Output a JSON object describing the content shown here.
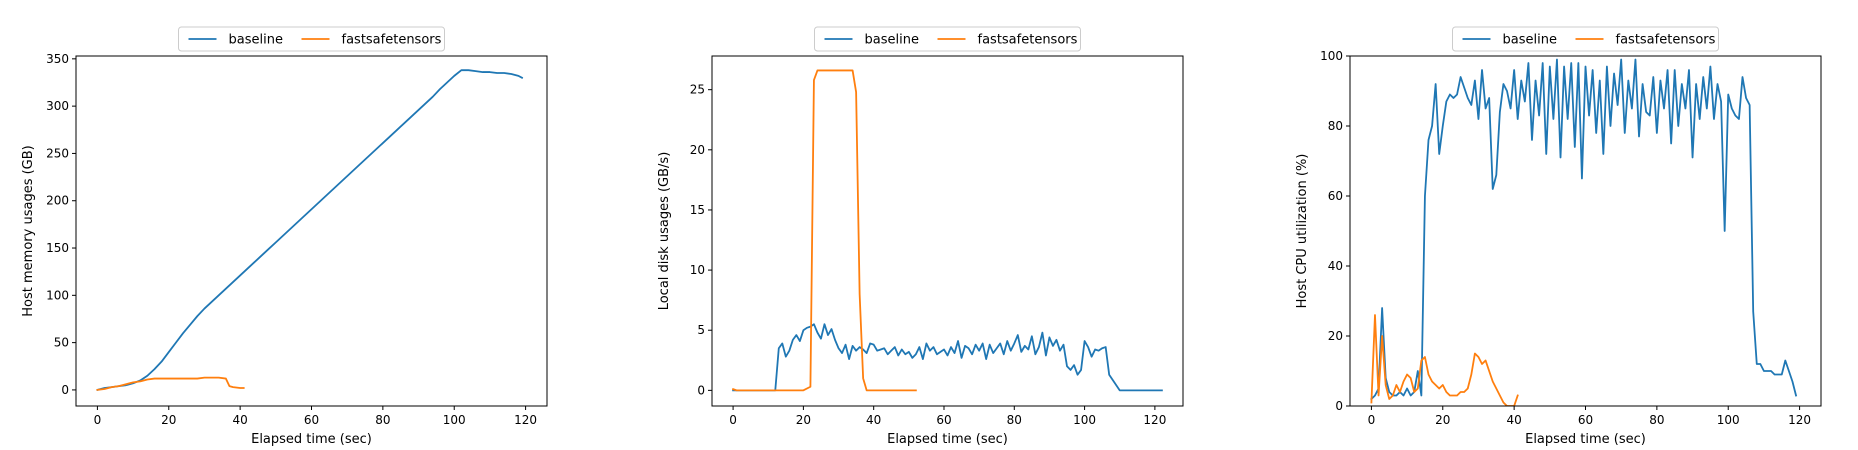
{
  "colors": {
    "baseline": "#1f77b4",
    "fastsafetensors": "#ff7f0e"
  },
  "chart_data": [
    {
      "type": "line",
      "title": "",
      "xlabel": "Elapsed time (sec)",
      "ylabel": "Host memory usages (GB)",
      "xlim": [
        -6,
        126
      ],
      "ylim": [
        -17,
        353
      ],
      "xticks": [
        0,
        20,
        40,
        60,
        80,
        100,
        120
      ],
      "yticks": [
        0,
        50,
        100,
        150,
        200,
        250,
        300,
        350
      ],
      "grid": false,
      "legend": "top-center",
      "series": [
        {
          "name": "baseline",
          "x": [
            0,
            2,
            4,
            6,
            8,
            10,
            12,
            14,
            16,
            18,
            20,
            22,
            24,
            26,
            28,
            30,
            32,
            34,
            36,
            38,
            40,
            42,
            44,
            46,
            48,
            50,
            52,
            54,
            56,
            58,
            60,
            62,
            64,
            66,
            68,
            70,
            72,
            74,
            76,
            78,
            80,
            82,
            84,
            86,
            88,
            90,
            92,
            94,
            96,
            98,
            100,
            102,
            104,
            106,
            108,
            110,
            112,
            114,
            116,
            118,
            119
          ],
          "y": [
            0,
            2,
            3,
            4,
            5,
            7,
            10,
            15,
            22,
            30,
            40,
            50,
            60,
            69,
            78,
            86,
            93,
            100,
            107,
            114,
            121,
            128,
            135,
            142,
            149,
            156,
            163,
            170,
            177,
            184,
            191,
            198,
            205,
            212,
            219,
            226,
            233,
            240,
            247,
            254,
            261,
            268,
            275,
            282,
            289,
            296,
            303,
            310,
            318,
            325,
            332,
            338,
            338,
            337,
            336,
            336,
            335,
            335,
            334,
            332,
            330
          ]
        },
        {
          "name": "fastsafetensors",
          "x": [
            0,
            2,
            4,
            6,
            8,
            10,
            12,
            14,
            16,
            18,
            20,
            22,
            24,
            26,
            28,
            30,
            32,
            34,
            36,
            37,
            38,
            40,
            41
          ],
          "y": [
            0,
            1,
            3,
            4,
            6,
            8,
            9,
            11,
            12,
            12,
            12,
            12,
            12,
            12,
            12,
            13,
            13,
            13,
            12,
            4,
            3,
            2,
            2
          ]
        }
      ]
    },
    {
      "type": "line",
      "title": "",
      "xlabel": "Elapsed time (sec)",
      "ylabel": "Local disk usages (GB/s)",
      "xlim": [
        -6,
        128
      ],
      "ylim": [
        -1.3,
        27.8
      ],
      "xticks": [
        0,
        20,
        40,
        60,
        80,
        100,
        120
      ],
      "yticks": [
        0,
        5,
        10,
        15,
        20,
        25
      ],
      "grid": false,
      "legend": "top-center",
      "series": [
        {
          "name": "baseline",
          "x": [
            0,
            2,
            4,
            6,
            8,
            10,
            12,
            13,
            14,
            15,
            16,
            17,
            18,
            19,
            20,
            21,
            22,
            23,
            24,
            25,
            26,
            27,
            28,
            29,
            30,
            31,
            32,
            33,
            34,
            35,
            36,
            37,
            38,
            39,
            40,
            41,
            42,
            43,
            44,
            45,
            46,
            47,
            48,
            49,
            50,
            51,
            52,
            53,
            54,
            55,
            56,
            57,
            58,
            59,
            60,
            61,
            62,
            63,
            64,
            65,
            66,
            67,
            68,
            69,
            70,
            71,
            72,
            73,
            74,
            75,
            76,
            77,
            78,
            79,
            80,
            81,
            82,
            83,
            84,
            85,
            86,
            87,
            88,
            89,
            90,
            91,
            92,
            93,
            94,
            95,
            96,
            97,
            98,
            99,
            100,
            101,
            102,
            103,
            104,
            105,
            106,
            107,
            110,
            115,
            122
          ],
          "y": [
            0,
            0,
            0,
            0,
            0,
            0,
            0,
            3.5,
            3.9,
            2.8,
            3.3,
            4.2,
            4.6,
            4.1,
            5.0,
            5.2,
            5.3,
            5.5,
            4.8,
            4.3,
            5.5,
            4.6,
            5.1,
            4.2,
            3.5,
            3.1,
            3.8,
            2.6,
            3.7,
            3.3,
            3.6,
            3.4,
            3.1,
            3.9,
            3.8,
            3.3,
            3.4,
            3.5,
            3.0,
            3.3,
            3.6,
            2.9,
            3.4,
            3.0,
            3.2,
            2.7,
            3.0,
            3.6,
            2.6,
            3.9,
            3.3,
            3.6,
            3.0,
            3.2,
            3.4,
            2.9,
            3.6,
            3.1,
            4.1,
            2.7,
            3.7,
            3.5,
            3.0,
            3.8,
            3.3,
            3.9,
            2.6,
            3.8,
            3.1,
            3.5,
            3.9,
            3.0,
            4.1,
            3.3,
            3.9,
            4.6,
            3.2,
            3.7,
            3.4,
            4.5,
            3.0,
            3.6,
            4.8,
            2.9,
            4.4,
            3.7,
            4.2,
            3.3,
            3.8,
            2.0,
            1.7,
            2.1,
            1.3,
            1.7,
            4.1,
            3.6,
            2.8,
            3.4,
            3.3,
            3.5,
            3.6,
            1.3,
            0,
            0,
            0
          ]
        },
        {
          "name": "fastsafetensors",
          "x": [
            0,
            1,
            5,
            10,
            15,
            20,
            22,
            23,
            24,
            26,
            28,
            30,
            32,
            34,
            35,
            36,
            37,
            38,
            40,
            45,
            52
          ],
          "y": [
            0.1,
            0,
            0,
            0,
            0,
            0,
            0.3,
            25.8,
            26.6,
            26.6,
            26.6,
            26.6,
            26.6,
            26.6,
            24.8,
            8.0,
            1.0,
            0,
            0,
            0,
            0
          ]
        }
      ]
    },
    {
      "type": "line",
      "title": "",
      "xlabel": "Elapsed time (sec)",
      "ylabel": "Host CPU utilization (%)",
      "xlim": [
        -6,
        126
      ],
      "ylim": [
        0,
        100
      ],
      "xticks": [
        0,
        20,
        40,
        60,
        80,
        100,
        120
      ],
      "yticks": [
        0,
        20,
        40,
        60,
        80,
        100
      ],
      "grid": false,
      "legend": "top-center",
      "series": [
        {
          "name": "baseline",
          "x": [
            0,
            1,
            2,
            3,
            4,
            5,
            6,
            7,
            8,
            9,
            10,
            11,
            12,
            13,
            14,
            15,
            16,
            17,
            18,
            19,
            20,
            21,
            22,
            23,
            24,
            25,
            26,
            27,
            28,
            29,
            30,
            31,
            32,
            33,
            34,
            35,
            36,
            37,
            38,
            39,
            40,
            41,
            42,
            43,
            44,
            45,
            46,
            47,
            48,
            49,
            50,
            51,
            52,
            53,
            54,
            55,
            56,
            57,
            58,
            59,
            60,
            61,
            62,
            63,
            64,
            65,
            66,
            67,
            68,
            69,
            70,
            71,
            72,
            73,
            74,
            75,
            76,
            77,
            78,
            79,
            80,
            81,
            82,
            83,
            84,
            85,
            86,
            87,
            88,
            89,
            90,
            91,
            92,
            93,
            94,
            95,
            96,
            97,
            98,
            99,
            100,
            101,
            102,
            103,
            104,
            105,
            106,
            107,
            108,
            109,
            110,
            111,
            112,
            113,
            114,
            115,
            116,
            117,
            118,
            119
          ],
          "y": [
            2,
            3,
            5,
            28,
            8,
            4,
            3,
            3,
            4,
            3,
            5,
            3,
            4,
            10,
            3,
            60,
            76,
            80,
            92,
            72,
            80,
            87,
            89,
            88,
            89,
            94,
            91,
            88,
            86,
            93,
            82,
            96,
            85,
            88,
            62,
            66,
            84,
            92,
            90,
            85,
            96,
            82,
            93,
            87,
            98,
            76,
            93,
            83,
            98,
            72,
            97,
            82,
            99,
            71,
            97,
            82,
            98,
            74,
            98,
            65,
            97,
            83,
            96,
            78,
            93,
            72,
            97,
            80,
            95,
            86,
            99,
            78,
            93,
            85,
            99,
            77,
            92,
            84,
            83,
            94,
            78,
            93,
            85,
            96,
            75,
            96,
            80,
            92,
            85,
            96,
            71,
            92,
            82,
            94,
            85,
            97,
            82,
            92,
            87,
            50,
            89,
            85,
            83,
            82,
            94,
            88,
            86,
            27,
            12,
            12,
            10,
            10,
            10,
            9,
            9,
            9,
            13,
            10,
            7,
            3
          ]
        },
        {
          "name": "fastsafetensors",
          "x": [
            0,
            1,
            2,
            3,
            4,
            5,
            6,
            7,
            8,
            9,
            10,
            11,
            12,
            13,
            14,
            15,
            16,
            17,
            18,
            19,
            20,
            21,
            22,
            23,
            24,
            25,
            26,
            27,
            28,
            29,
            30,
            31,
            32,
            33,
            34,
            35,
            36,
            37,
            38,
            39,
            40,
            41
          ],
          "y": [
            1,
            26,
            3,
            20,
            6,
            2,
            3,
            6,
            4,
            7,
            9,
            8,
            4,
            5,
            13,
            14,
            9,
            7,
            6,
            5,
            6,
            4,
            3,
            3,
            3,
            4,
            4,
            5,
            9,
            15,
            14,
            12,
            13,
            10,
            7,
            5,
            3,
            1,
            0,
            0,
            0,
            3
          ]
        }
      ]
    }
  ]
}
